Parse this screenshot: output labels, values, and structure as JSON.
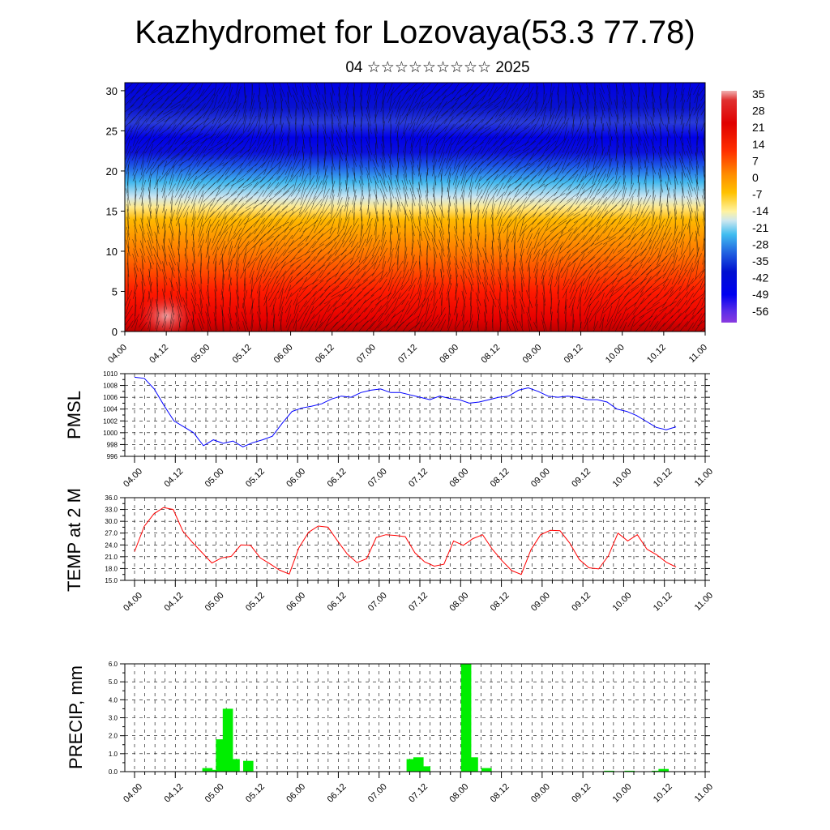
{
  "title": "Kazhydromet for Lozovaya(53.3 77.78)",
  "subtitle": "04 ☆☆☆☆☆☆☆☆☆ 2025",
  "chart_data": [
    {
      "type": "heatmap",
      "y_ticks": [
        0,
        5,
        10,
        15,
        20,
        25,
        30
      ],
      "ylim": [
        0,
        31
      ],
      "x_tick_labels": [
        "04.00",
        "04.12",
        "05.00",
        "05.12",
        "06.00",
        "06.12",
        "07.00",
        "07.12",
        "08.00",
        "08.12",
        "09.00",
        "09.12",
        "10.00",
        "10.12",
        "11.00"
      ],
      "colorbar_labels": [
        "35",
        "28",
        "21",
        "14",
        "7",
        "0",
        "-7",
        "-14",
        "-21",
        "-28",
        "-35",
        "-42",
        "-49",
        "-56"
      ],
      "temperature_profile_by_level": [
        [
          0,
          30
        ],
        [
          5,
          24
        ],
        [
          10,
          14
        ],
        [
          15,
          -2
        ],
        [
          17,
          -12
        ],
        [
          20,
          -33
        ],
        [
          23,
          -55
        ],
        [
          25,
          -53
        ],
        [
          28,
          -55
        ],
        [
          31,
          -57
        ]
      ],
      "overlay": "wind barbs"
    },
    {
      "type": "line",
      "ylabel": "PMSL",
      "ylim": [
        996,
        1010
      ],
      "y_tick_labels": [
        "996",
        "998",
        "1000",
        "1002",
        "1004",
        "1006",
        "1008",
        "1010"
      ],
      "x_tick_labels": [
        "04.00",
        "04.12",
        "05.00",
        "05.12",
        "06.00",
        "06.12",
        "07.00",
        "07.12",
        "08.00",
        "08.12",
        "09.00",
        "09.12",
        "10.00",
        "10.12",
        "11.00"
      ],
      "series": [
        {
          "color": "#0000ff",
          "values": [
            1009.4,
            1009.2,
            1007.4,
            1004.6,
            1002.0,
            1001.0,
            1000.0,
            997.8,
            998.8,
            998.2,
            998.6,
            997.6,
            998.3,
            998.8,
            999.4,
            1001.6,
            1003.6,
            1004.2,
            1004.5,
            1004.9,
            1005.7,
            1006.2,
            1006.0,
            1006.8,
            1007.2,
            1007.4,
            1006.8,
            1006.8,
            1006.4,
            1006.0,
            1005.6,
            1006.2,
            1005.8,
            1005.6,
            1005.0,
            1005.2,
            1005.6,
            1006.0,
            1006.2,
            1007.2,
            1007.6,
            1007.0,
            1006.2,
            1006.0,
            1006.2,
            1006.0,
            1005.6,
            1005.6,
            1005.2,
            1004.0,
            1003.6,
            1002.9,
            1001.9,
            1000.9,
            1000.5,
            1001.0
          ]
        }
      ]
    },
    {
      "type": "line",
      "ylabel": "TEMP at 2 M",
      "ylim": [
        15,
        36
      ],
      "y_tick_labels": [
        "15.0",
        "18.0",
        "21.0",
        "24.0",
        "27.0",
        "30.0",
        "33.0",
        "36.0"
      ],
      "x_tick_labels": [
        "04.00",
        "04.12",
        "05.00",
        "05.12",
        "06.00",
        "06.12",
        "07.00",
        "07.12",
        "08.00",
        "08.12",
        "09.00",
        "09.12",
        "10.00",
        "10.12",
        "11.00"
      ],
      "series": [
        {
          "color": "#ff0000",
          "values": [
            22.3,
            28.7,
            31.9,
            33.5,
            33.0,
            27.5,
            24.6,
            22.0,
            19.4,
            20.7,
            21.1,
            24.0,
            23.9,
            20.7,
            19.2,
            17.6,
            16.6,
            23.3,
            27.2,
            28.8,
            28.5,
            25.0,
            21.7,
            19.5,
            20.5,
            25.9,
            26.6,
            26.4,
            26.1,
            22.0,
            19.7,
            18.6,
            19.1,
            25.0,
            23.9,
            25.6,
            26.6,
            22.9,
            20.0,
            17.5,
            16.5,
            22.8,
            26.6,
            27.7,
            27.6,
            24.5,
            20.3,
            18.2,
            17.9,
            21.2,
            27.0,
            25.0,
            26.6,
            22.9,
            21.5,
            19.6,
            18.4
          ]
        }
      ]
    },
    {
      "type": "bar",
      "ylabel": "PRECIP, mm",
      "ylim": [
        0,
        6
      ],
      "y_tick_labels": [
        "0.0",
        "1.0",
        "2.0",
        "3.0",
        "4.0",
        "5.0",
        "6.0"
      ],
      "x_tick_labels": [
        "04.00",
        "04.12",
        "05.00",
        "05.12",
        "06.00",
        "06.12",
        "07.00",
        "07.12",
        "08.00",
        "08.12",
        "09.00",
        "09.12",
        "10.00",
        "10.12",
        "11.00"
      ],
      "series": [
        {
          "color": "#00ee00",
          "values": [
            0,
            0,
            0,
            0,
            0,
            0,
            0,
            0,
            0,
            0.2,
            0.1,
            1.8,
            3.5,
            0.7,
            0,
            0.6,
            0,
            0,
            0,
            0,
            0,
            0,
            0,
            0,
            0,
            0,
            0,
            0,
            0,
            0,
            0,
            0,
            0,
            0,
            0,
            0,
            0,
            0,
            0,
            0.7,
            0.8,
            0.3,
            0,
            0,
            0,
            0,
            0,
            6.0,
            0.8,
            0,
            0.2,
            0,
            0,
            0,
            0,
            0,
            0,
            0,
            0,
            0,
            0,
            0,
            0,
            0,
            0,
            0,
            0,
            0,
            0.05,
            0,
            0,
            0.05,
            0,
            0,
            0,
            0.05,
            0.15
          ]
        }
      ]
    }
  ]
}
